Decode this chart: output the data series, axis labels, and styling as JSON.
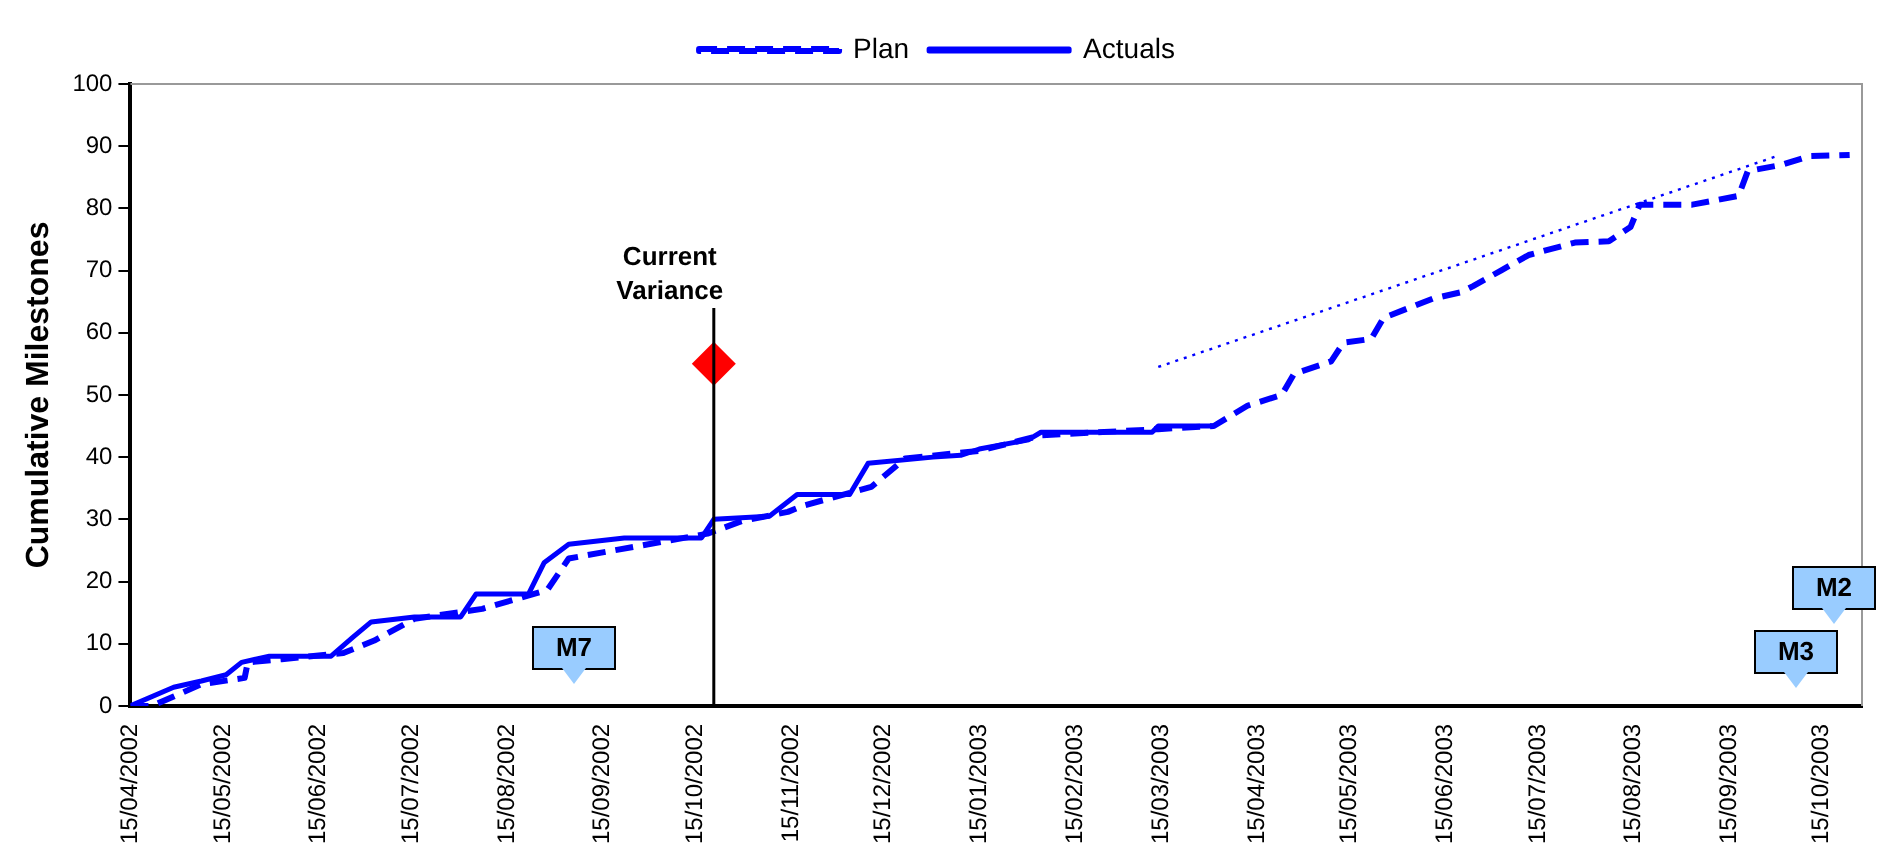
{
  "chart_data": {
    "type": "line",
    "ylabel": "Cumulative Milestones",
    "xlim": [
      "2002-04-15",
      "2003-10-28"
    ],
    "xticks": [
      {
        "value": "2002-04-15",
        "label": "15/04/2002"
      },
      {
        "value": "2002-05-15",
        "label": "15/05/2002"
      },
      {
        "value": "2002-06-15",
        "label": "15/06/2002"
      },
      {
        "value": "2002-07-15",
        "label": "15/07/2002"
      },
      {
        "value": "2002-08-15",
        "label": "15/08/2002"
      },
      {
        "value": "2002-09-15",
        "label": "15/09/2002"
      },
      {
        "value": "2002-10-15",
        "label": "15/10/2002"
      },
      {
        "value": "2002-11-15",
        "label": "15/11/2002"
      },
      {
        "value": "2002-12-15",
        "label": "15/12/2002"
      },
      {
        "value": "2003-01-15",
        "label": "15/01/2003"
      },
      {
        "value": "2003-02-15",
        "label": "15/02/2003"
      },
      {
        "value": "2003-03-15",
        "label": "15/03/2003"
      },
      {
        "value": "2003-04-15",
        "label": "15/04/2003"
      },
      {
        "value": "2003-05-15",
        "label": "15/05/2003"
      },
      {
        "value": "2003-06-15",
        "label": "15/06/2003"
      },
      {
        "value": "2003-07-15",
        "label": "15/07/2003"
      },
      {
        "value": "2003-08-15",
        "label": "15/08/2003"
      },
      {
        "value": "2003-09-15",
        "label": "15/09/2003"
      },
      {
        "value": "2003-10-15",
        "label": "15/10/2003"
      }
    ],
    "ylim": [
      0,
      100
    ],
    "yticks": [
      0,
      10,
      20,
      30,
      40,
      50,
      60,
      70,
      80,
      90,
      100
    ],
    "grid": false,
    "legend": "top",
    "marker": "none",
    "series": [
      {
        "name": "Plan",
        "color": "#0000ff",
        "line_style": "dashed",
        "x": [
          "2002-04-15",
          "2002-04-22",
          "2002-04-29",
          "2002-05-08",
          "2002-05-22",
          "2002-05-23",
          "2002-06-03",
          "2002-06-23",
          "2002-07-03",
          "2002-07-16",
          "2002-08-07",
          "2002-08-28",
          "2002-09-04",
          "2002-10-19",
          "2002-10-30",
          "2002-11-14",
          "2002-11-19",
          "2002-12-11",
          "2002-12-22",
          "2003-01-15",
          "2003-02-04",
          "2003-03-14",
          "2003-04-01",
          "2003-04-12",
          "2003-04-23",
          "2003-04-27",
          "2003-05-09",
          "2003-05-13",
          "2003-05-22",
          "2003-05-26",
          "2003-06-11",
          "2003-06-20",
          "2003-06-24",
          "2003-07-03",
          "2003-07-12",
          "2003-07-27",
          "2003-08-07",
          "2003-08-14",
          "2003-08-17",
          "2003-09-03",
          "2003-09-18",
          "2003-09-21",
          "2003-10-02",
          "2003-10-11",
          "2003-10-24"
        ],
        "values": [
          0,
          0,
          1.5,
          3.5,
          4.5,
          7,
          7.5,
          8.5,
          10.5,
          14,
          15.6,
          18.6,
          23.7,
          27.7,
          29.7,
          31.2,
          32.2,
          35.2,
          39.8,
          41,
          43.5,
          44.5,
          45,
          48.3,
          50,
          53.4,
          55.4,
          58.4,
          59,
          62.4,
          65.5,
          66.5,
          67.5,
          70,
          72.5,
          74.5,
          74.7,
          77,
          80.6,
          80.6,
          82,
          86,
          87,
          88.4,
          88.6
        ]
      },
      {
        "name": "Actuals",
        "color": "#0000ff",
        "line_style": "solid",
        "x": [
          "2002-04-15",
          "2002-04-29",
          "2002-05-08",
          "2002-05-16",
          "2002-05-21",
          "2002-05-30",
          "2002-06-19",
          "2002-06-26",
          "2002-07-02",
          "2002-07-16",
          "2002-07-31",
          "2002-08-05",
          "2002-08-22",
          "2002-08-27",
          "2002-09-04",
          "2002-09-22",
          "2002-10-17",
          "2002-10-21",
          "2002-11-08",
          "2002-11-17",
          "2002-12-04",
          "2002-12-10",
          "2002-12-31",
          "2003-01-09",
          "2003-01-15",
          "2003-01-31",
          "2003-02-04",
          "2003-03-12",
          "2003-03-14",
          "2003-04-01"
        ],
        "values": [
          0,
          3,
          4,
          5,
          7,
          8,
          8,
          11,
          13.5,
          14.3,
          14.3,
          18,
          18,
          23,
          26,
          27,
          27,
          30,
          30.5,
          34,
          34,
          39,
          40,
          40.3,
          41.3,
          42.8,
          44,
          44,
          45,
          45
        ]
      },
      {
        "type": "line",
        "color": "#0000ff",
        "line_style": "dotted",
        "x": [
          "2003-03-14",
          "2003-10-01"
        ],
        "values": [
          54.5,
          88.5
        ]
      },
      {
        "type": "scatter",
        "color": "#ff0000",
        "marker": "diamond",
        "x": [
          "2002-10-21"
        ],
        "values": [
          55
        ]
      }
    ],
    "ref_lines": [
      {
        "axis": "x",
        "value": "2002-10-21",
        "label": "Current Variance",
        "color": "#000000"
      }
    ],
    "annotations": [
      "M7",
      "M3",
      "M2"
    ]
  }
}
